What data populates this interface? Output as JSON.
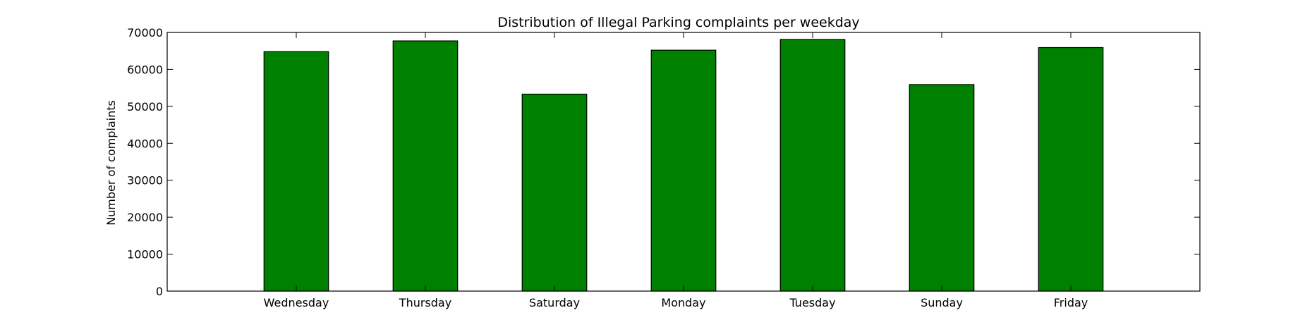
{
  "chart_data": {
    "type": "bar",
    "title": "Distribution of  Illegal Parking complaints per weekday",
    "xlabel": "",
    "ylabel": "Number of complaints",
    "categories": [
      "Wednesday",
      "Thursday",
      "Saturday",
      "Monday",
      "Tuesday",
      "Sunday",
      "Friday"
    ],
    "values": [
      64800,
      67700,
      53300,
      65200,
      68100,
      55900,
      65900
    ],
    "ylim": [
      0,
      70000
    ],
    "yticks": [
      "0",
      "10000",
      "20000",
      "30000",
      "40000",
      "50000",
      "60000",
      "70000"
    ],
    "grid": false,
    "legend": "none",
    "bar_color": "#008000",
    "edge_color": "#000000"
  }
}
